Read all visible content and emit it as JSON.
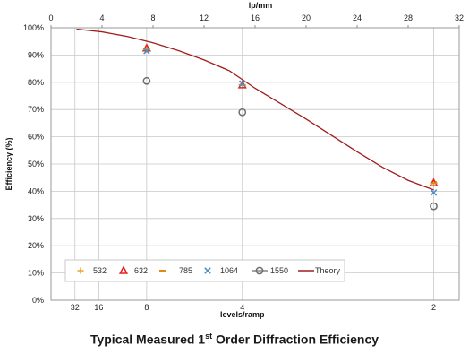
{
  "colors": {
    "s532": "#F4A13A",
    "s632": "#E02020",
    "s785": "#E08A14",
    "s1064": "#4A90C8",
    "s1550": "#6E6E6E",
    "theory": "#A11D1D",
    "grid": "#c8c8c8",
    "plot_border": "#9a9a9a"
  },
  "caption": {
    "prefix": "Typical Measured 1",
    "sup": "st",
    "suffix": " Order Diffraction Efficiency"
  },
  "chart_data": {
    "type": "scatter",
    "title": "",
    "ylabel": "Efficiency (%)",
    "top_xlabel": "lp/mm",
    "bottom_xlabel": "levels/ramp",
    "xlim": [
      0,
      32
    ],
    "ylim": [
      0,
      100
    ],
    "grid": true,
    "legend_position": "bottom-left",
    "top_ticks": [
      "0",
      "4",
      "8",
      "12",
      "16",
      "20",
      "24",
      "28",
      "32"
    ],
    "top_tick_values": [
      0,
      4,
      8,
      12,
      16,
      20,
      24,
      28,
      32
    ],
    "y_ticks": [
      "0%",
      "10%",
      "20%",
      "30%",
      "40%",
      "50%",
      "60%",
      "70%",
      "80%",
      "90%",
      "100%"
    ],
    "y_tick_values": [
      0,
      10,
      20,
      30,
      40,
      50,
      60,
      70,
      80,
      90,
      100
    ],
    "bottom_ticks": [
      {
        "label": "32",
        "x": 1.875
      },
      {
        "label": "16",
        "x": 3.75
      },
      {
        "label": "8",
        "x": 7.5
      },
      {
        "label": "4",
        "x": 15
      },
      {
        "label": "2",
        "x": 30
      }
    ],
    "series": [
      {
        "name": "532",
        "marker": "plus",
        "color_key": "s532",
        "x": [
          7.5,
          15,
          30
        ],
        "y": [
          92.5,
          79,
          43.5
        ]
      },
      {
        "name": "632",
        "marker": "triangle",
        "color_key": "s632",
        "x": [
          7.5,
          15,
          30
        ],
        "y": [
          92.5,
          79,
          43
        ]
      },
      {
        "name": "785",
        "marker": "dash",
        "color_key": "s785",
        "x": [
          7.5,
          15,
          30
        ],
        "y": [
          92,
          79,
          43
        ]
      },
      {
        "name": "1064",
        "marker": "x",
        "color_key": "s1064",
        "x": [
          7.5,
          15,
          30
        ],
        "y": [
          91.5,
          79.5,
          39.5
        ]
      },
      {
        "name": "1550",
        "marker": "circle",
        "color_key": "s1550",
        "x": [
          7.5,
          15,
          30
        ],
        "y": [
          80.5,
          69,
          34.5
        ]
      },
      {
        "name": "Theory",
        "marker": "line",
        "color_key": "theory",
        "x": [
          2,
          4,
          6,
          8,
          10,
          12,
          14,
          15,
          16,
          18,
          20,
          22,
          24,
          26,
          28,
          30
        ],
        "y": [
          99.5,
          98.5,
          96.8,
          94.5,
          91.6,
          88.2,
          84.2,
          81,
          77.8,
          72.2,
          66.5,
          60.5,
          54.5,
          48.8,
          44,
          40.5
        ]
      }
    ]
  }
}
